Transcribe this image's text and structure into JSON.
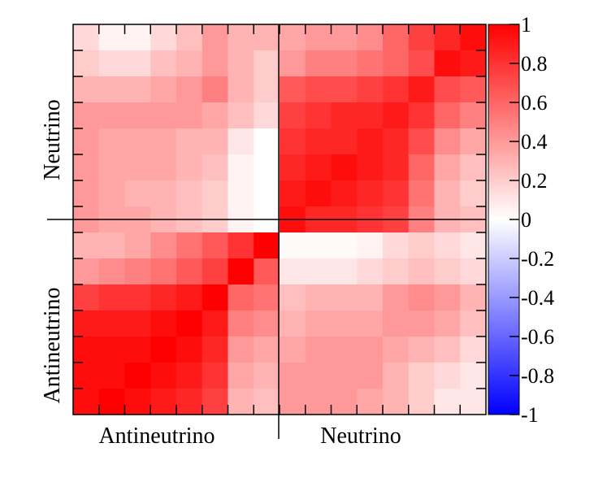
{
  "chart_data": {
    "type": "heatmap",
    "x_group_labels": [
      "Antineutrino",
      "Neutrino"
    ],
    "y_group_labels": [
      "Neutrino",
      "Antineutrino"
    ],
    "colorbar": {
      "ticks": [
        "1",
        "0.8",
        "0.6",
        "0.4",
        "0.2",
        "0",
        "-0.2",
        "-0.4",
        "-0.6",
        "-0.8",
        "-1"
      ],
      "range": [
        -1,
        1
      ],
      "colors": {
        "negative": "#0000ff",
        "zero": "#ffffff",
        "positive": "#ff0000"
      }
    },
    "rows": 15,
    "cols": 16,
    "matrix": [
      [
        0.15,
        0.05,
        0.05,
        0.15,
        0.25,
        0.4,
        0.3,
        0.3,
        0.35,
        0.4,
        0.4,
        0.45,
        0.6,
        0.75,
        0.85,
        0.95
      ],
      [
        0.2,
        0.15,
        0.15,
        0.25,
        0.3,
        0.4,
        0.3,
        0.2,
        0.4,
        0.5,
        0.5,
        0.55,
        0.6,
        0.7,
        0.95,
        0.9
      ],
      [
        0.3,
        0.3,
        0.3,
        0.35,
        0.4,
        0.5,
        0.3,
        0.2,
        0.65,
        0.7,
        0.7,
        0.75,
        0.8,
        0.9,
        0.7,
        0.65
      ],
      [
        0.4,
        0.4,
        0.4,
        0.4,
        0.4,
        0.35,
        0.25,
        0.15,
        0.75,
        0.8,
        0.85,
        0.85,
        0.9,
        0.8,
        0.6,
        0.5
      ],
      [
        0.4,
        0.35,
        0.35,
        0.35,
        0.3,
        0.3,
        0.1,
        0.0,
        0.8,
        0.85,
        0.85,
        0.9,
        0.85,
        0.7,
        0.45,
        0.35
      ],
      [
        0.4,
        0.35,
        0.35,
        0.35,
        0.3,
        0.25,
        0.05,
        0.0,
        0.85,
        0.9,
        0.95,
        0.9,
        0.85,
        0.6,
        0.35,
        0.25
      ],
      [
        0.4,
        0.35,
        0.3,
        0.3,
        0.25,
        0.2,
        0.05,
        0.0,
        0.9,
        0.95,
        0.9,
        0.85,
        0.8,
        0.55,
        0.3,
        0.2
      ],
      [
        0.4,
        0.35,
        0.35,
        0.3,
        0.25,
        0.2,
        0.05,
        0.0,
        0.95,
        0.85,
        0.85,
        0.8,
        0.75,
        0.5,
        0.3,
        0.25
      ],
      [
        0.3,
        0.3,
        0.35,
        0.45,
        0.55,
        0.65,
        0.8,
        1.0,
        0.02,
        0.02,
        0.02,
        0.05,
        0.15,
        0.2,
        0.15,
        0.1
      ],
      [
        0.4,
        0.45,
        0.5,
        0.55,
        0.65,
        0.75,
        1.0,
        0.65,
        0.1,
        0.1,
        0.1,
        0.15,
        0.2,
        0.25,
        0.2,
        0.15
      ],
      [
        0.75,
        0.8,
        0.8,
        0.85,
        0.9,
        1.0,
        0.6,
        0.55,
        0.25,
        0.3,
        0.3,
        0.3,
        0.4,
        0.45,
        0.4,
        0.3
      ],
      [
        0.9,
        0.9,
        0.9,
        0.95,
        1.0,
        0.9,
        0.5,
        0.45,
        0.3,
        0.35,
        0.35,
        0.35,
        0.4,
        0.4,
        0.35,
        0.25
      ],
      [
        0.95,
        0.95,
        0.95,
        1.0,
        0.95,
        0.85,
        0.4,
        0.35,
        0.35,
        0.4,
        0.4,
        0.4,
        0.35,
        0.3,
        0.25,
        0.15
      ],
      [
        0.95,
        0.95,
        1.0,
        0.95,
        0.9,
        0.8,
        0.35,
        0.3,
        0.4,
        0.4,
        0.4,
        0.4,
        0.3,
        0.2,
        0.15,
        0.1
      ],
      [
        0.95,
        1.0,
        0.95,
        0.9,
        0.85,
        0.75,
        0.3,
        0.25,
        0.4,
        0.4,
        0.4,
        0.35,
        0.3,
        0.2,
        0.1,
        0.1
      ]
    ]
  }
}
